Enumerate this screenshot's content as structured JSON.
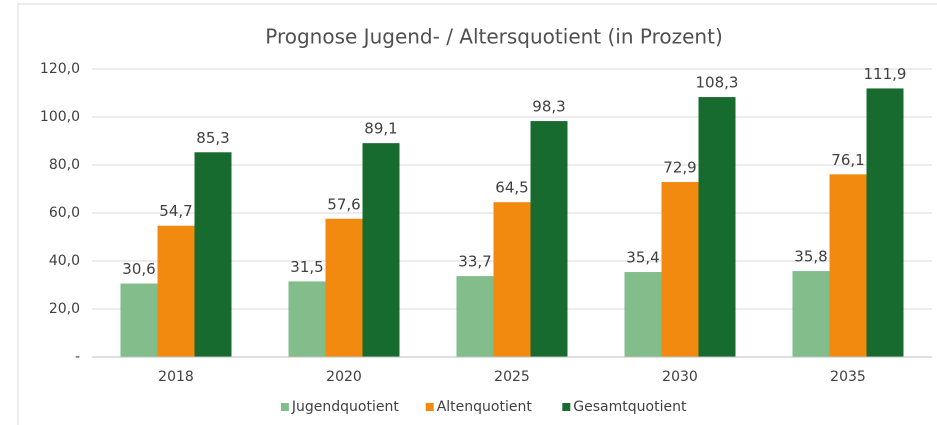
{
  "chart_data": {
    "type": "bar",
    "title": "Prognose Jugend- / Altersquotient (in Prozent)",
    "categories": [
      "2018",
      "2020",
      "2025",
      "2030",
      "2035"
    ],
    "series": [
      {
        "name": "Jugendquotient",
        "color": "#82bd8b",
        "values": [
          30.6,
          31.5,
          33.7,
          35.4,
          35.8
        ],
        "value_labels": [
          "30,6",
          "31,5",
          "33,7",
          "35,4",
          "35,8"
        ]
      },
      {
        "name": "Altenquotient",
        "color": "#f28a10",
        "values": [
          54.7,
          57.6,
          64.5,
          72.9,
          76.1
        ],
        "value_labels": [
          "54,7",
          "57,6",
          "64,5",
          "72,9",
          "76,1"
        ]
      },
      {
        "name": "Gesamtquotient",
        "color": "#176b2f",
        "values": [
          85.3,
          89.1,
          98.3,
          108.3,
          111.9
        ],
        "value_labels": [
          "85,3",
          "89,1",
          "98,3",
          "108,3",
          "111,9"
        ]
      }
    ],
    "ylim": [
      0,
      120
    ],
    "yticks": [
      {
        "value": 0,
        "label": "-"
      },
      {
        "value": 20,
        "label": "20,0"
      },
      {
        "value": 40,
        "label": "40,0"
      },
      {
        "value": 60,
        "label": "60,0"
      },
      {
        "value": 80,
        "label": "80,0"
      },
      {
        "value": 100,
        "label": "100,0"
      },
      {
        "value": 120,
        "label": "120,0"
      }
    ],
    "grid": true,
    "legend": "bottom"
  }
}
